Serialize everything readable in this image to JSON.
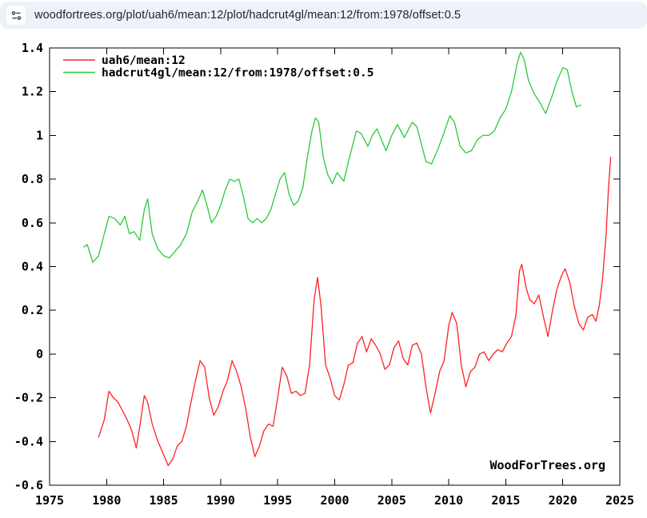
{
  "browser": {
    "url": "woodfortrees.org/plot/uah6/mean:12/plot/hadcrut4gl/mean:12/from:1978/offset:0.5",
    "bar_background": "#edf1f9",
    "icon": "site-settings-tune-icon",
    "icon_color": "#50555e"
  },
  "chart_data": {
    "type": "line",
    "title": "",
    "xlabel": "",
    "ylabel": "",
    "watermark": "WoodForTrees.org",
    "grid": false,
    "legend_position": "top-left-inside",
    "xlim": [
      1975,
      2025
    ],
    "ylim": [
      -0.6,
      1.4
    ],
    "xticks": [
      1975,
      1980,
      1985,
      1990,
      1995,
      2000,
      2005,
      2010,
      2015,
      2020,
      2025
    ],
    "xtick_labels": [
      "1975",
      "1980",
      "1985",
      "1990",
      "1995",
      "2000",
      "2005",
      "2010",
      "2015",
      "2020",
      "2025"
    ],
    "yticks": [
      1.4,
      1.2,
      1.0,
      0.8,
      0.6,
      0.4,
      0.2,
      0.0,
      -0.2,
      -0.4,
      -0.6
    ],
    "ytick_labels": [
      "1.4",
      "1.2",
      "1",
      "0.8",
      "0.6",
      "0.4",
      "0.2",
      "0",
      "-0.2",
      "-0.4",
      "-0.6"
    ],
    "axis_color": "#000000",
    "series": [
      {
        "name": "uah6/mean:12",
        "color": "#ff2020",
        "x": [
          1979.3,
          1979.8,
          1980.2,
          1980.6,
          1981.0,
          1981.4,
          1981.8,
          1982.2,
          1982.6,
          1983.0,
          1983.3,
          1983.6,
          1984.0,
          1984.5,
          1985.0,
          1985.4,
          1985.8,
          1986.2,
          1986.6,
          1987.0,
          1987.4,
          1987.8,
          1988.2,
          1988.6,
          1989.0,
          1989.4,
          1989.8,
          1990.2,
          1990.6,
          1991.0,
          1991.4,
          1991.8,
          1992.2,
          1992.6,
          1993.0,
          1993.4,
          1993.8,
          1994.2,
          1994.6,
          1995.0,
          1995.4,
          1995.8,
          1996.2,
          1996.6,
          1997.0,
          1997.4,
          1997.8,
          1998.2,
          1998.5,
          1998.8,
          1999.2,
          1999.6,
          2000.0,
          2000.4,
          2000.8,
          2001.2,
          2001.6,
          2002.0,
          2002.4,
          2002.8,
          2003.2,
          2003.6,
          2004.0,
          2004.4,
          2004.8,
          2005.2,
          2005.6,
          2006.0,
          2006.4,
          2006.8,
          2007.2,
          2007.6,
          2008.0,
          2008.4,
          2008.8,
          2009.2,
          2009.6,
          2010.0,
          2010.3,
          2010.7,
          2011.1,
          2011.5,
          2011.9,
          2012.3,
          2012.7,
          2013.1,
          2013.5,
          2013.9,
          2014.3,
          2014.7,
          2015.1,
          2015.5,
          2015.9,
          2016.2,
          2016.4,
          2016.8,
          2017.1,
          2017.5,
          2017.9,
          2018.3,
          2018.7,
          2019.1,
          2019.5,
          2019.9,
          2020.2,
          2020.6,
          2021.0,
          2021.4,
          2021.8,
          2022.2,
          2022.6,
          2022.9,
          2023.2,
          2023.5,
          2023.8,
          2024.0,
          2024.2
        ],
        "y": [
          -0.38,
          -0.3,
          -0.17,
          -0.2,
          -0.22,
          -0.26,
          -0.3,
          -0.35,
          -0.43,
          -0.3,
          -0.19,
          -0.22,
          -0.32,
          -0.4,
          -0.46,
          -0.51,
          -0.48,
          -0.42,
          -0.4,
          -0.33,
          -0.22,
          -0.12,
          -0.03,
          -0.06,
          -0.2,
          -0.28,
          -0.24,
          -0.17,
          -0.12,
          -0.03,
          -0.08,
          -0.15,
          -0.25,
          -0.38,
          -0.47,
          -0.42,
          -0.35,
          -0.32,
          -0.33,
          -0.2,
          -0.06,
          -0.1,
          -0.18,
          -0.17,
          -0.19,
          -0.18,
          -0.05,
          0.25,
          0.35,
          0.22,
          -0.05,
          -0.11,
          -0.19,
          -0.21,
          -0.14,
          -0.05,
          -0.04,
          0.05,
          0.08,
          0.01,
          0.07,
          0.04,
          0.0,
          -0.07,
          -0.05,
          0.03,
          0.06,
          -0.02,
          -0.05,
          0.04,
          0.05,
          0.0,
          -0.15,
          -0.27,
          -0.18,
          -0.08,
          -0.03,
          0.13,
          0.19,
          0.14,
          -0.05,
          -0.15,
          -0.08,
          -0.06,
          0.0,
          0.01,
          -0.03,
          0.0,
          0.02,
          0.01,
          0.05,
          0.08,
          0.18,
          0.38,
          0.41,
          0.3,
          0.25,
          0.23,
          0.27,
          0.17,
          0.08,
          0.2,
          0.3,
          0.36,
          0.39,
          0.33,
          0.22,
          0.14,
          0.11,
          0.17,
          0.18,
          0.15,
          0.22,
          0.35,
          0.55,
          0.75,
          0.9
        ]
      },
      {
        "name": "hadcrut4gl/mean:12/from:1978/offset:0.5",
        "color": "#2bc93c",
        "x": [
          1978.0,
          1978.3,
          1978.8,
          1979.3,
          1979.8,
          1980.2,
          1980.7,
          1981.2,
          1981.6,
          1982.0,
          1982.4,
          1982.9,
          1983.3,
          1983.6,
          1984.0,
          1984.5,
          1985.0,
          1985.5,
          1986.0,
          1986.5,
          1987.0,
          1987.5,
          1988.0,
          1988.4,
          1988.8,
          1989.2,
          1989.6,
          1990.0,
          1990.4,
          1990.8,
          1991.2,
          1991.6,
          1992.0,
          1992.4,
          1992.8,
          1993.2,
          1993.6,
          1994.0,
          1994.4,
          1994.8,
          1995.2,
          1995.6,
          1996.0,
          1996.4,
          1996.8,
          1997.2,
          1997.6,
          1998.0,
          1998.3,
          1998.6,
          1999.0,
          1999.4,
          1999.8,
          2000.2,
          2000.8,
          2001.2,
          2001.9,
          2002.3,
          2002.9,
          2003.3,
          2003.7,
          2004.1,
          2004.5,
          2005.0,
          2005.5,
          2006.1,
          2006.8,
          2007.2,
          2008.0,
          2008.5,
          2009.0,
          2009.5,
          2010.1,
          2010.5,
          2011.0,
          2011.5,
          2012.0,
          2012.5,
          2013.0,
          2013.5,
          2014.0,
          2014.5,
          2015.0,
          2015.5,
          2016.0,
          2016.3,
          2016.6,
          2017.0,
          2017.5,
          2018.0,
          2018.5,
          2019.0,
          2019.5,
          2020.0,
          2020.4,
          2020.8,
          2021.2,
          2021.6
        ],
        "y": [
          0.49,
          0.5,
          0.42,
          0.45,
          0.55,
          0.63,
          0.62,
          0.59,
          0.63,
          0.55,
          0.56,
          0.52,
          0.66,
          0.71,
          0.55,
          0.48,
          0.45,
          0.44,
          0.47,
          0.5,
          0.55,
          0.65,
          0.7,
          0.75,
          0.68,
          0.6,
          0.63,
          0.68,
          0.75,
          0.8,
          0.79,
          0.8,
          0.72,
          0.62,
          0.6,
          0.62,
          0.6,
          0.62,
          0.66,
          0.73,
          0.8,
          0.83,
          0.73,
          0.68,
          0.7,
          0.76,
          0.9,
          1.02,
          1.08,
          1.06,
          0.9,
          0.82,
          0.78,
          0.83,
          0.79,
          0.88,
          1.02,
          1.01,
          0.95,
          1.0,
          1.03,
          0.98,
          0.93,
          1.0,
          1.05,
          0.99,
          1.06,
          1.04,
          0.88,
          0.87,
          0.93,
          1.0,
          1.09,
          1.06,
          0.95,
          0.92,
          0.93,
          0.98,
          1.0,
          1.0,
          1.02,
          1.08,
          1.12,
          1.2,
          1.33,
          1.38,
          1.35,
          1.25,
          1.19,
          1.15,
          1.1,
          1.17,
          1.25,
          1.31,
          1.3,
          1.2,
          1.13,
          1.14
        ]
      }
    ]
  }
}
